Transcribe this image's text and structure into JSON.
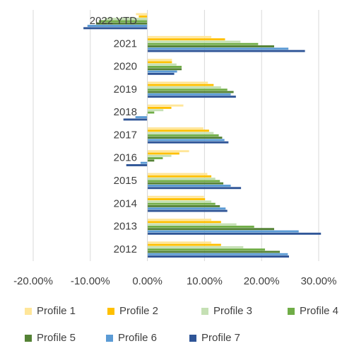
{
  "chart_data": {
    "type": "bar",
    "orientation": "horizontal",
    "categories": [
      "2012",
      "2013",
      "2014",
      "2015",
      "2016",
      "2017",
      "2018",
      "2019",
      "2020",
      "2021",
      "2022 YTD"
    ],
    "series": [
      {
        "name": "Profile 1",
        "color": "#FFE699",
        "values": [
          11.2,
          11.2,
          9.9,
          10.5,
          7.3,
          9.8,
          6.3,
          10.6,
          4.3,
          11.2,
          -2.0
        ]
      },
      {
        "name": "Profile 2",
        "color": "#FFC000",
        "values": [
          12.9,
          12.9,
          10.1,
          11.2,
          5.6,
          10.8,
          4.2,
          11.6,
          4.3,
          13.6,
          -1.5
        ]
      },
      {
        "name": "Profile 3",
        "color": "#C5E0B4",
        "values": [
          16.8,
          15.6,
          11.2,
          11.9,
          4.2,
          11.6,
          2.8,
          12.9,
          5.1,
          16.3,
          -7.5
        ]
      },
      {
        "name": "Profile 4",
        "color": "#70AD47",
        "values": [
          20.6,
          18.7,
          11.9,
          12.7,
          2.7,
          12.5,
          1.2,
          14.0,
          6.0,
          19.4,
          -8.5
        ]
      },
      {
        "name": "Profile 5",
        "color": "#548235",
        "values": [
          23.2,
          22.2,
          12.7,
          13.3,
          1.2,
          13.1,
          -0.1,
          15.1,
          6.0,
          22.2,
          -9.0
        ]
      },
      {
        "name": "Profile 6",
        "color": "#5B9BD5",
        "values": [
          24.6,
          26.5,
          13.7,
          14.6,
          -1.2,
          13.5,
          -2.1,
          14.6,
          5.2,
          24.7,
          -10.5
        ]
      },
      {
        "name": "Profile 7",
        "color": "#2F5597",
        "values": [
          24.8,
          30.4,
          14.0,
          16.4,
          -3.7,
          14.2,
          -4.2,
          15.5,
          4.7,
          27.6,
          -11.2
        ]
      }
    ],
    "xlim": [
      -20,
      30
    ],
    "xticks": [
      {
        "value": -20,
        "label": "-20.00%"
      },
      {
        "value": -10,
        "label": "-10.00%"
      },
      {
        "value": 0,
        "label": "0.00%"
      },
      {
        "value": 10,
        "label": "10.00%"
      },
      {
        "value": 20,
        "label": "20.00%"
      },
      {
        "value": 30,
        "label": "30.00%"
      }
    ],
    "grid": true,
    "legend": "bottom"
  }
}
